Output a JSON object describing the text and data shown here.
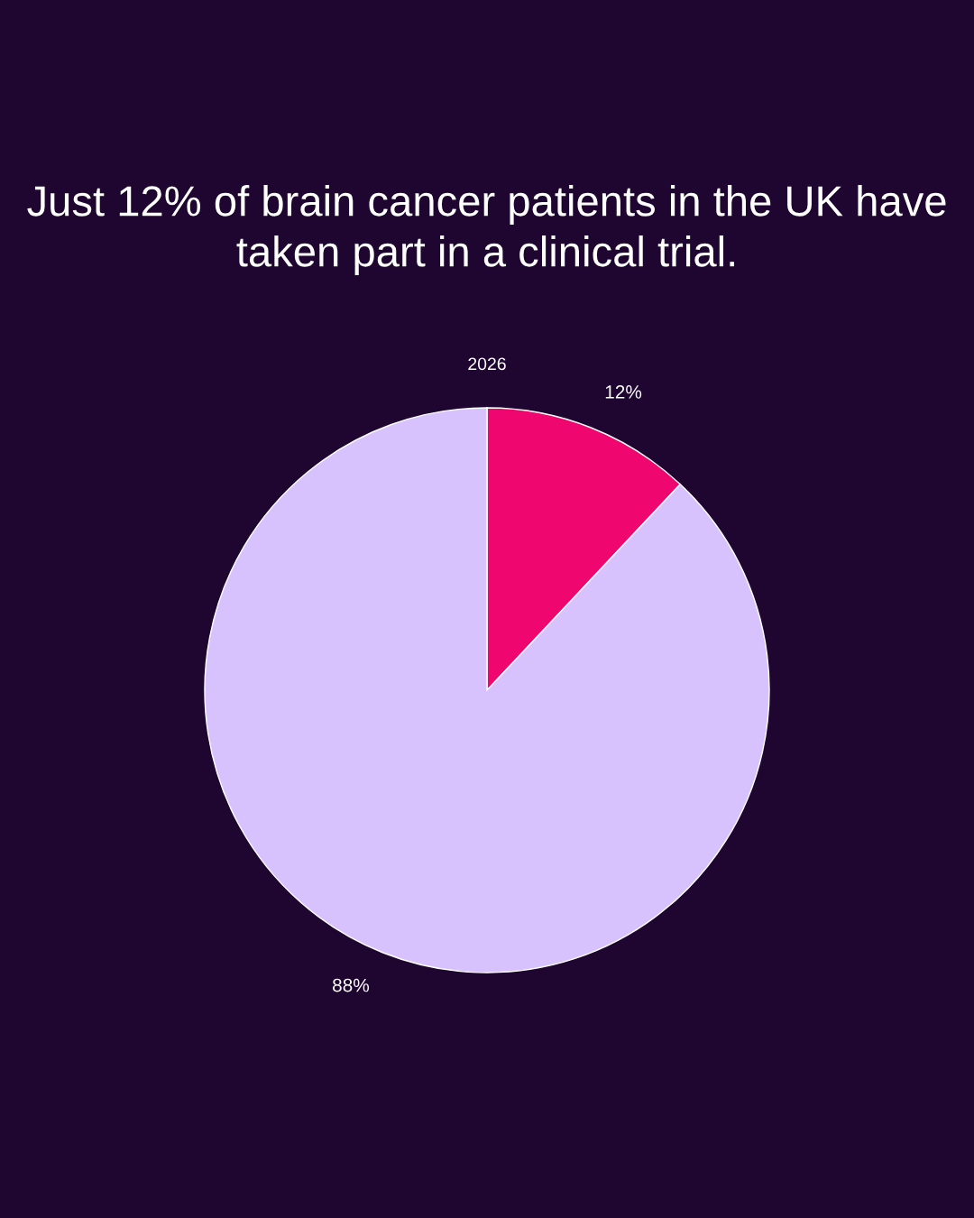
{
  "chart_data": {
    "type": "pie",
    "title": "Just 12% of brain cancer patients in the UK have taken part in a clinical trial.",
    "annotations": [
      "2026"
    ],
    "categories": [
      null,
      null
    ],
    "values": [
      12,
      88
    ],
    "colors": [
      "#f0066f",
      "#d7c2fd"
    ],
    "value_labels": [
      "12%",
      "88%"
    ],
    "legend": false
  }
}
